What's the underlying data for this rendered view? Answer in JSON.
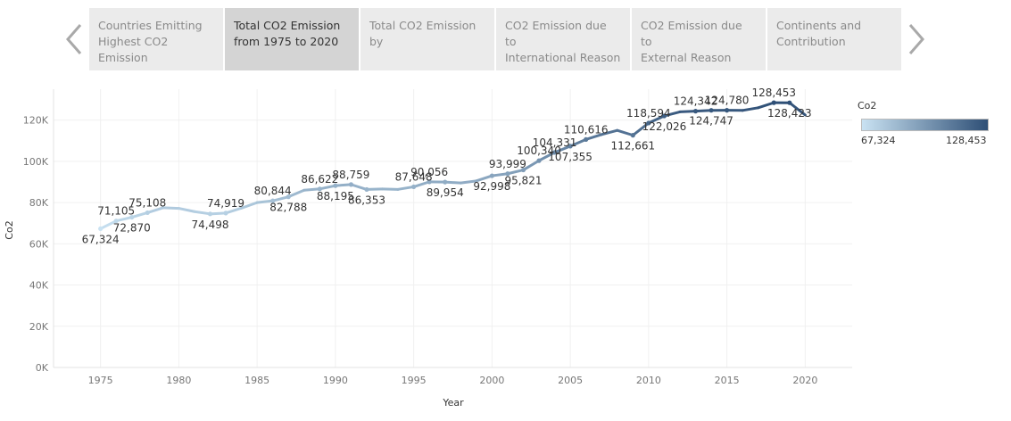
{
  "nav": {
    "prev_icon": "chevron-left-icon",
    "next_icon": "chevron-right-icon",
    "tabs": [
      {
        "label": "Countries Emitting\nHighest CO2 Emission",
        "active": false
      },
      {
        "label": "Total CO2 Emission\nfrom 1975 to 2020",
        "active": true
      },
      {
        "label": "Total CO2 Emission by",
        "active": false
      },
      {
        "label": "CO2 Emission due to\nInternational Reason",
        "active": false
      },
      {
        "label": "CO2 Emission due to\nExternal Reason",
        "active": false
      },
      {
        "label": "Continents and\nContribution",
        "active": false
      }
    ]
  },
  "legend": {
    "title": "Co2",
    "min_label": "67,324",
    "max_label": "128,453",
    "color_low": "#c9e2f2",
    "color_high": "#2e4f76"
  },
  "chart_data": {
    "type": "line",
    "xlabel": "Year",
    "ylabel": "Co2",
    "xlim": [
      1972,
      2023
    ],
    "ylim": [
      0,
      135000
    ],
    "x_ticks": [
      1975,
      1980,
      1985,
      1990,
      1995,
      2000,
      2005,
      2010,
      2015,
      2020
    ],
    "y_ticks": [
      0,
      20000,
      40000,
      60000,
      80000,
      100000,
      120000
    ],
    "y_tick_labels": [
      "0K",
      "20K",
      "40K",
      "60K",
      "80K",
      "100K",
      "120K"
    ],
    "grid": true,
    "x": [
      1975,
      1976,
      1977,
      1978,
      1979,
      1980,
      1981,
      1982,
      1983,
      1984,
      1985,
      1986,
      1987,
      1988,
      1989,
      1990,
      1991,
      1992,
      1993,
      1994,
      1995,
      1996,
      1997,
      1998,
      1999,
      2000,
      2001,
      2002,
      2003,
      2004,
      2005,
      2006,
      2007,
      2008,
      2009,
      2010,
      2011,
      2012,
      2013,
      2014,
      2015,
      2016,
      2017,
      2018,
      2019,
      2020
    ],
    "values": [
      67324,
      71105,
      72870,
      75108,
      77500,
      77200,
      75600,
      74498,
      74919,
      77300,
      80000,
      80844,
      82788,
      86000,
      86622,
      88195,
      88759,
      86353,
      86600,
      86400,
      87648,
      90056,
      89954,
      89500,
      90500,
      92998,
      93999,
      95821,
      100340,
      104331,
      107355,
      110616,
      113000,
      115000,
      112661,
      118594,
      122026,
      124000,
      124342,
      124747,
      124780,
      124700,
      126000,
      128453,
      128423,
      122500
    ],
    "data_labels": [
      {
        "year": 1975,
        "text": "67,324",
        "pos": "below"
      },
      {
        "year": 1976,
        "text": "71,105",
        "pos": "above"
      },
      {
        "year": 1977,
        "text": "72,870",
        "pos": "below"
      },
      {
        "year": 1978,
        "text": "75,108",
        "pos": "above"
      },
      {
        "year": 1982,
        "text": "74,498",
        "pos": "below"
      },
      {
        "year": 1983,
        "text": "74,919",
        "pos": "above"
      },
      {
        "year": 1986,
        "text": "80,844",
        "pos": "above"
      },
      {
        "year": 1987,
        "text": "82,788",
        "pos": "below"
      },
      {
        "year": 1989,
        "text": "86,622",
        "pos": "above"
      },
      {
        "year": 1990,
        "text": "88,195",
        "pos": "below"
      },
      {
        "year": 1991,
        "text": "88,759",
        "pos": "above"
      },
      {
        "year": 1992,
        "text": "86,353",
        "pos": "below"
      },
      {
        "year": 1995,
        "text": "87,648",
        "pos": "above"
      },
      {
        "year": 1996,
        "text": "90,056",
        "pos": "above"
      },
      {
        "year": 1997,
        "text": "89,954",
        "pos": "below"
      },
      {
        "year": 2000,
        "text": "92,998",
        "pos": "below"
      },
      {
        "year": 2001,
        "text": "93,999",
        "pos": "above"
      },
      {
        "year": 2002,
        "text": "95,821",
        "pos": "below"
      },
      {
        "year": 2003,
        "text": "100,340",
        "pos": "above"
      },
      {
        "year": 2004,
        "text": "104,331",
        "pos": "above"
      },
      {
        "year": 2005,
        "text": "107,355",
        "pos": "below"
      },
      {
        "year": 2006,
        "text": "110,616",
        "pos": "above"
      },
      {
        "year": 2009,
        "text": "112,661",
        "pos": "below"
      },
      {
        "year": 2010,
        "text": "118,594",
        "pos": "above"
      },
      {
        "year": 2011,
        "text": "122,026",
        "pos": "below"
      },
      {
        "year": 2013,
        "text": "124,342",
        "pos": "above"
      },
      {
        "year": 2014,
        "text": "124,747",
        "pos": "below"
      },
      {
        "year": 2015,
        "text": "124,780",
        "pos": "above"
      },
      {
        "year": 2018,
        "text": "128,453",
        "pos": "above"
      },
      {
        "year": 2019,
        "text": "128,423",
        "pos": "below"
      }
    ],
    "color_range": {
      "min": 67324,
      "max": 128453
    }
  }
}
